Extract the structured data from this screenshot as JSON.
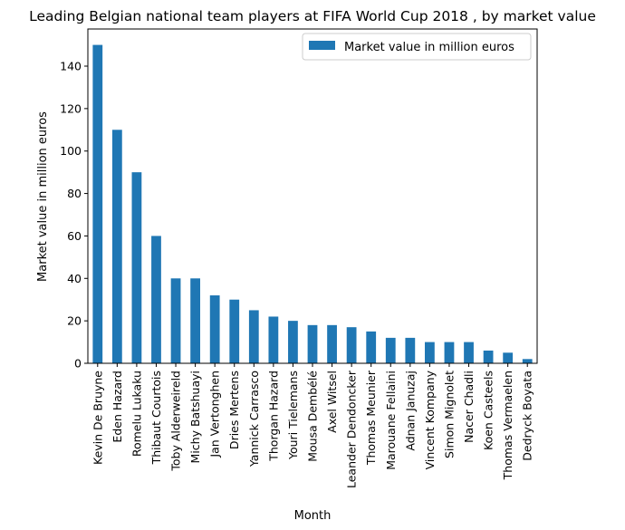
{
  "chart_data": {
    "type": "bar",
    "title": "Leading Belgian national team players at FIFA World Cup 2018 , by market value",
    "xlabel": "Month",
    "ylabel": "Market value in million euros",
    "ylim": [
      0,
      157.5
    ],
    "yticks": [
      0,
      20,
      40,
      60,
      80,
      100,
      120,
      140
    ],
    "grid": false,
    "legend_position": "top-right",
    "bar_color": "#1f77b4",
    "categories": [
      "Kevin De Bruyne",
      "Eden Hazard",
      "Romelu Lukaku",
      "Thibaut Courtois",
      "Toby Alderweireld",
      "Michy Batshuayi",
      "Jan Vertonghen",
      "Dries Mertens",
      "Yannick Carrasco",
      "Thorgan Hazard",
      "Youri Tielemans",
      "Mousa Dembélé",
      "Axel Witsel",
      "Leander Dendoncker",
      "Thomas Meunier",
      "Marouane Fellaini",
      "Adnan Januzaj",
      "Vincent Kompany",
      "Simon Mignolet",
      "Nacer Chadli",
      "Koen Casteels",
      "Thomas Vermaelen",
      "Dedryck Boyata"
    ],
    "series": [
      {
        "name": "Market value in million euros",
        "values": [
          150,
          110,
          90,
          60,
          40,
          40,
          32,
          30,
          25,
          22,
          20,
          18,
          18,
          17,
          15,
          12,
          12,
          10,
          10,
          10,
          6,
          5,
          2
        ]
      }
    ]
  }
}
